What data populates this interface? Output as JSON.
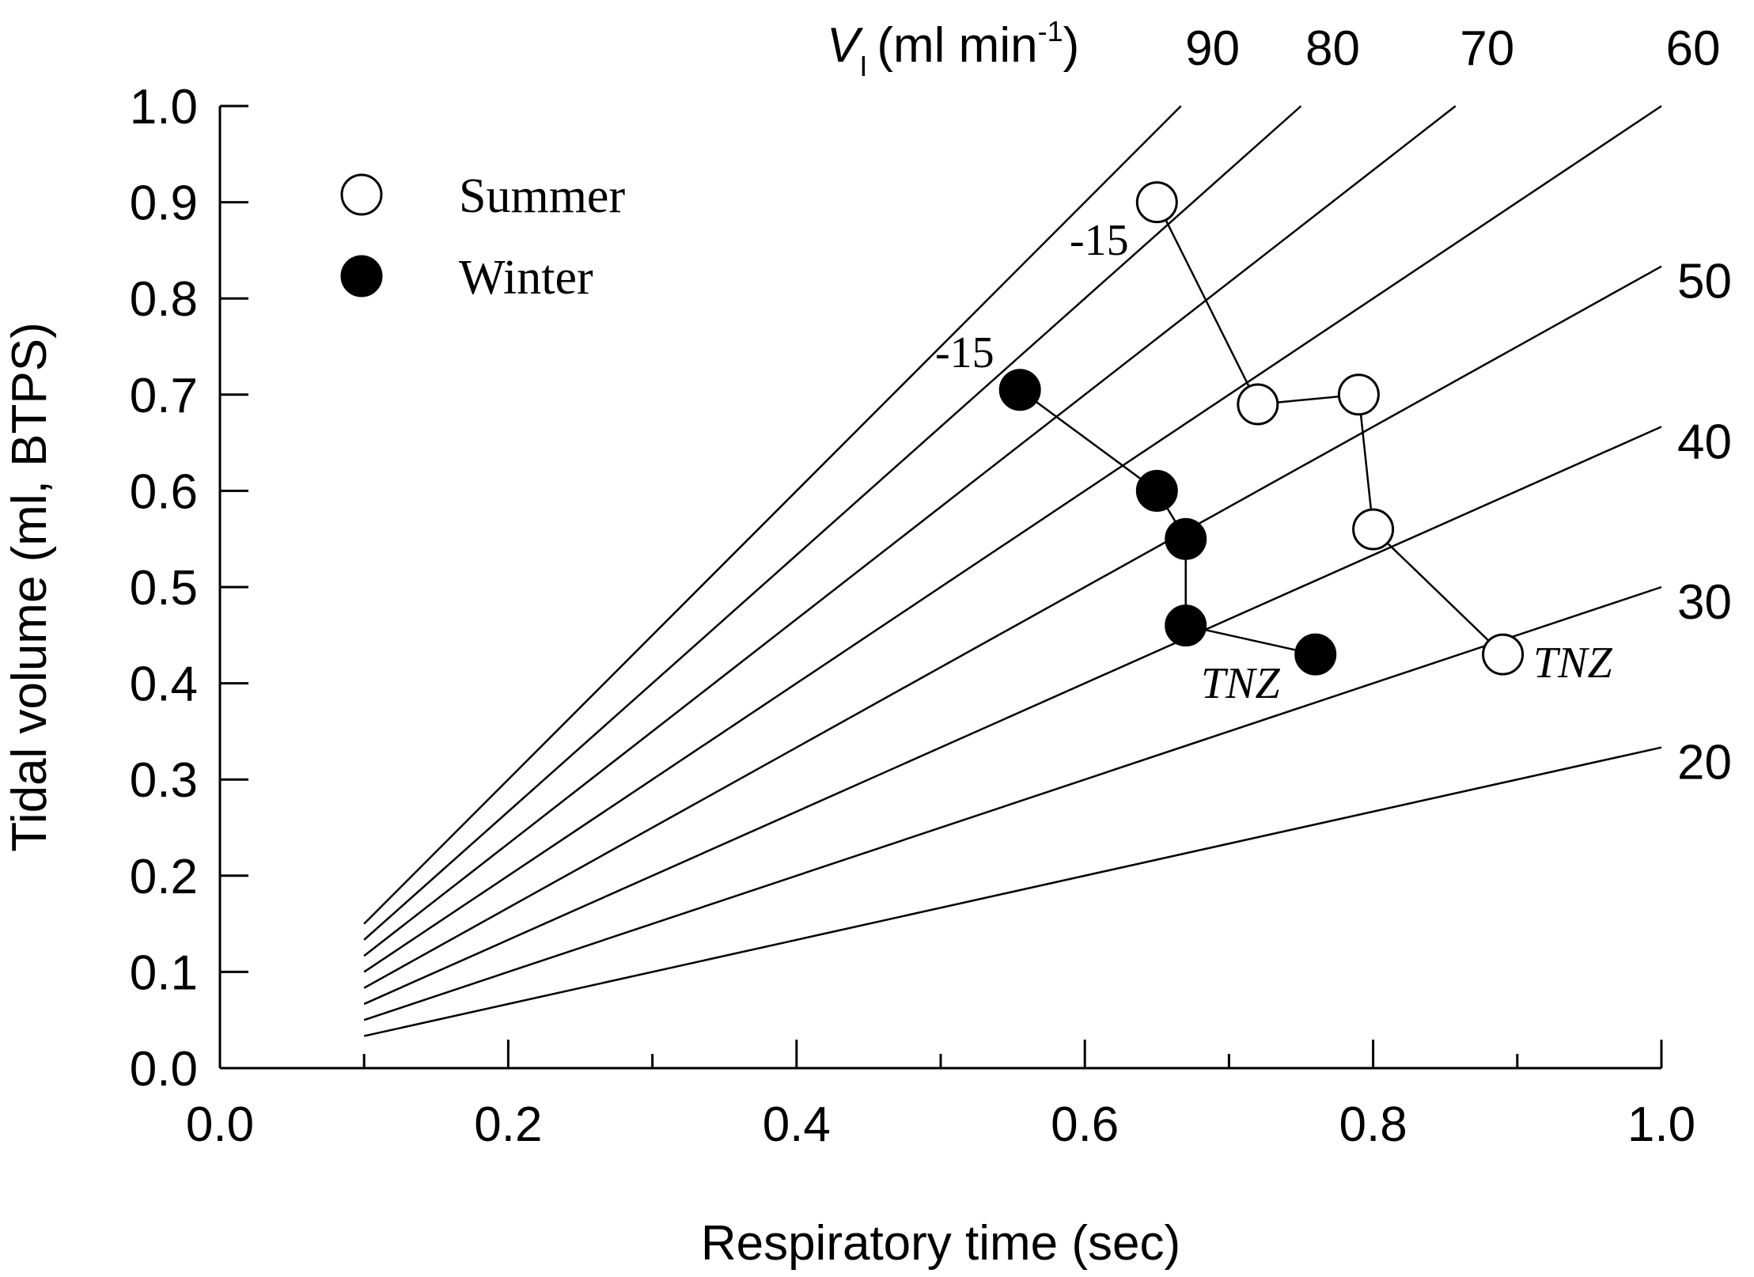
{
  "chart_data": {
    "type": "scatter",
    "title": "",
    "xlabel": "Respiratory time (sec)",
    "ylabel": "Tidal volume (ml, BTPS)",
    "xlim": [
      0.0,
      1.0
    ],
    "ylim": [
      0.0,
      1.0
    ],
    "x_ticks": [
      "0.0",
      "0.2",
      "0.4",
      "0.6",
      "0.8",
      "1.0"
    ],
    "y_ticks": [
      "0.0",
      "0.1",
      "0.2",
      "0.3",
      "0.4",
      "0.5",
      "0.6",
      "0.7",
      "0.8",
      "0.9",
      "1.0"
    ],
    "isopleth_header": {
      "symbol": "V",
      "subscript": "I",
      "unit_open": "(ml min",
      "unit_exp": "-1",
      "unit_close": ")"
    },
    "isopleths": [
      {
        "label": "90",
        "rate": 90
      },
      {
        "label": "80",
        "rate": 80
      },
      {
        "label": "70",
        "rate": 70
      },
      {
        "label": "60",
        "rate": 60
      },
      {
        "label": "50",
        "rate": 50
      },
      {
        "label": "40",
        "rate": 40
      },
      {
        "label": "30",
        "rate": 30
      },
      {
        "label": "20",
        "rate": 20
      }
    ],
    "series": [
      {
        "name": "Summer",
        "marker": "open-circle",
        "points": [
          {
            "x": 0.65,
            "y": 0.9
          },
          {
            "x": 0.72,
            "y": 0.69
          },
          {
            "x": 0.79,
            "y": 0.7
          },
          {
            "x": 0.8,
            "y": 0.56
          },
          {
            "x": 0.89,
            "y": 0.43
          }
        ]
      },
      {
        "name": "Winter",
        "marker": "filled-circle",
        "points": [
          {
            "x": 0.555,
            "y": 0.705
          },
          {
            "x": 0.65,
            "y": 0.6
          },
          {
            "x": 0.67,
            "y": 0.55
          },
          {
            "x": 0.67,
            "y": 0.46
          },
          {
            "x": 0.76,
            "y": 0.43
          }
        ]
      }
    ],
    "annotations": [
      {
        "text": "-15",
        "series": "Summer",
        "point": "first",
        "style": "normal"
      },
      {
        "text": "-15",
        "series": "Winter",
        "point": "first",
        "style": "normal"
      },
      {
        "text": "TNZ",
        "series": "Summer",
        "point": "last",
        "style": "italic"
      },
      {
        "text": "TNZ",
        "series": "Winter",
        "point": "last",
        "style": "italic"
      }
    ],
    "legend": {
      "position": "top-left",
      "entries": [
        {
          "label": "Summer",
          "marker": "open-circle"
        },
        {
          "label": "Winter",
          "marker": "filled-circle"
        }
      ]
    },
    "colors": {
      "line": "#000000",
      "background": "#ffffff",
      "open_fill": "#ffffff",
      "filled_fill": "#000000"
    }
  }
}
